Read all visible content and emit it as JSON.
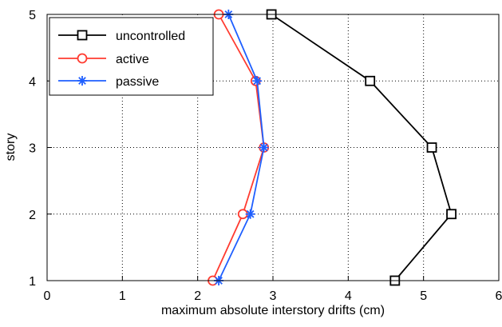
{
  "chart_data": {
    "type": "line",
    "xlabel": "maximum absolute interstory drifts (cm)",
    "ylabel": "story",
    "xlim": [
      0,
      6
    ],
    "ylim": [
      1,
      5
    ],
    "xticks": [
      "0",
      "1",
      "2",
      "3",
      "4",
      "5",
      "6"
    ],
    "yticks": [
      "1",
      "2",
      "3",
      "4",
      "5"
    ],
    "grid": true,
    "legend_position": "top-left",
    "series": [
      {
        "name": "uncontrolled",
        "color": "#000000",
        "marker": "square",
        "points": [
          {
            "x": 4.62,
            "y": 1
          },
          {
            "x": 5.37,
            "y": 2
          },
          {
            "x": 5.11,
            "y": 3
          },
          {
            "x": 4.29,
            "y": 4
          },
          {
            "x": 2.98,
            "y": 5
          }
        ]
      },
      {
        "name": "active",
        "color": "#ff3b30",
        "marker": "circle",
        "points": [
          {
            "x": 2.2,
            "y": 1
          },
          {
            "x": 2.6,
            "y": 2
          },
          {
            "x": 2.88,
            "y": 3
          },
          {
            "x": 2.77,
            "y": 4
          },
          {
            "x": 2.28,
            "y": 5
          }
        ]
      },
      {
        "name": "passive",
        "color": "#1f5fff",
        "marker": "asterisk",
        "points": [
          {
            "x": 2.28,
            "y": 1
          },
          {
            "x": 2.7,
            "y": 2
          },
          {
            "x": 2.88,
            "y": 3
          },
          {
            "x": 2.79,
            "y": 4
          },
          {
            "x": 2.41,
            "y": 5
          }
        ]
      }
    ]
  }
}
